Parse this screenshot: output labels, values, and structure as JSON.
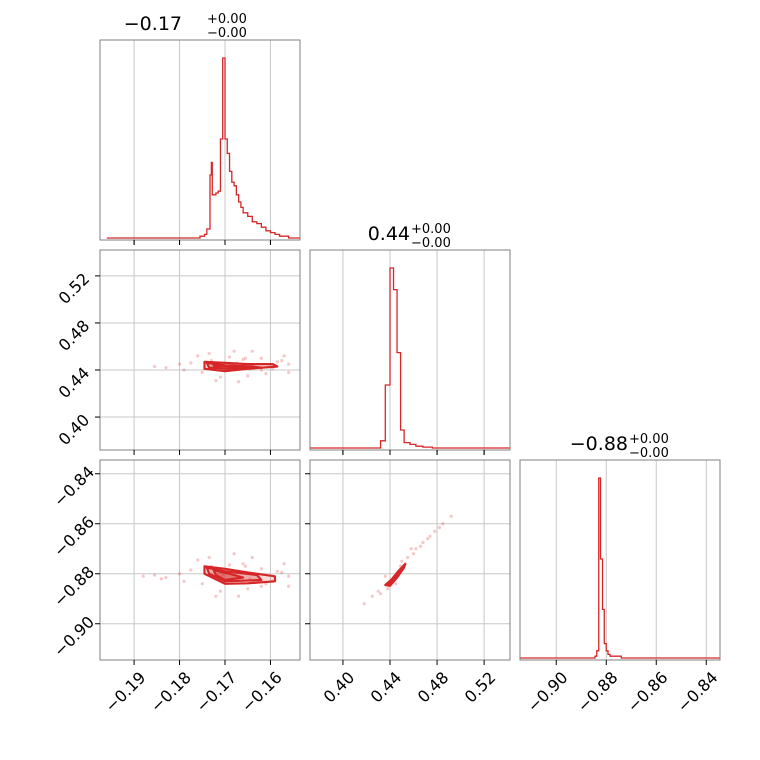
{
  "chart_data": {
    "type": "corner",
    "color": "#d62728",
    "parameters": [
      {
        "title": {
          "median": "−0.17",
          "plus": "+0.00",
          "minus": "−0.00"
        },
        "range": [
          -0.1975,
          -0.1535
        ],
        "ticks": [
          -0.19,
          -0.18,
          -0.17,
          -0.16
        ],
        "tick_labels": [
          "−0.19",
          "−0.18",
          "−0.17",
          "−0.16"
        ]
      },
      {
        "title": {
          "median": "0.44",
          "plus": "+0.00",
          "minus": "−0.00"
        },
        "range": [
          0.372,
          0.542
        ],
        "ticks": [
          0.4,
          0.44,
          0.48,
          0.52
        ],
        "tick_labels": [
          "0.40",
          "0.44",
          "0.48",
          "0.52"
        ]
      },
      {
        "title": {
          "median": "−0.88",
          "plus": "+0.00",
          "minus": "−0.00"
        },
        "range": [
          -0.9145,
          -0.8345
        ],
        "ticks": [
          -0.9,
          -0.88,
          -0.86,
          -0.84
        ],
        "tick_labels": [
          "−0.90",
          "−0.88",
          "−0.86",
          "−0.84"
        ]
      }
    ],
    "histograms": [
      {
        "param": 0,
        "bins": [
          -0.196,
          -0.1755,
          -0.1745,
          -0.174,
          -0.1733,
          -0.173,
          -0.1728,
          -0.172,
          -0.1715,
          -0.171,
          -0.1705,
          -0.17,
          -0.1695,
          -0.169,
          -0.1685,
          -0.168,
          -0.1675,
          -0.167,
          -0.1665,
          -0.166,
          -0.1655,
          -0.165,
          -0.164,
          -0.163,
          -0.162,
          -0.161,
          -0.16,
          -0.159,
          -0.158,
          -0.157,
          -0.156,
          -0.1535
        ],
        "values": [
          0.0,
          0.01,
          0.02,
          0.05,
          0.35,
          0.42,
          0.24,
          0.25,
          0.26,
          0.55,
          1.0,
          0.55,
          0.47,
          0.37,
          0.31,
          0.29,
          0.24,
          0.2,
          0.17,
          0.14,
          0.14,
          0.12,
          0.09,
          0.08,
          0.06,
          0.04,
          0.03,
          0.02,
          0.01,
          0.01,
          0.0
        ]
      },
      {
        "param": 1,
        "bins": [
          0.372,
          0.432,
          0.436,
          0.44,
          0.443,
          0.446,
          0.449,
          0.452,
          0.457,
          0.462,
          0.468,
          0.476,
          0.542
        ],
        "values": [
          0.0,
          0.04,
          0.35,
          1.0,
          0.88,
          0.53,
          0.1,
          0.03,
          0.02,
          0.01,
          0.005,
          0.0
        ]
      },
      {
        "param": 2,
        "bins": [
          -0.9145,
          -0.8845,
          -0.8838,
          -0.883,
          -0.8823,
          -0.8815,
          -0.8808,
          -0.88,
          -0.8793,
          -0.8785,
          -0.877,
          -0.874,
          -0.87,
          -0.8345
        ],
        "values": [
          0.0,
          0.01,
          0.04,
          1.0,
          0.55,
          0.27,
          0.08,
          0.04,
          0.02,
          0.01,
          0.01,
          0.0,
          0.0
        ]
      }
    ],
    "joint_panels": [
      {
        "x_param": 0,
        "y_param": 1,
        "levels": [
          [
            [
              -0.1745,
              0.447
            ],
            [
              -0.17,
              0.446
            ],
            [
              -0.165,
              0.445
            ],
            [
              -0.1595,
              0.445
            ],
            [
              -0.1585,
              0.443
            ],
            [
              -0.165,
              0.441
            ],
            [
              -0.17,
              0.439
            ],
            [
              -0.1745,
              0.441
            ]
          ],
          [
            [
              -0.174,
              0.446
            ],
            [
              -0.17,
              0.444
            ],
            [
              -0.164,
              0.443
            ],
            [
              -0.162,
              0.442
            ],
            [
              -0.169,
              0.441
            ],
            [
              -0.1735,
              0.442
            ]
          ],
          [
            [
              -0.1725,
              0.444
            ],
            [
              -0.169,
              0.443
            ],
            [
              -0.166,
              0.442
            ],
            [
              -0.17,
              0.441
            ],
            [
              -0.172,
              0.442
            ]
          ]
        ],
        "points": [
          [
            -0.1775,
            0.446
          ],
          [
            -0.176,
            0.452
          ],
          [
            -0.179,
            0.44
          ],
          [
            -0.168,
            0.456
          ],
          [
            -0.166,
            0.449
          ],
          [
            -0.162,
            0.44
          ],
          [
            -0.1585,
            0.447
          ],
          [
            -0.156,
            0.445
          ],
          [
            -0.157,
            0.452
          ],
          [
            -0.171,
            0.434
          ],
          [
            -0.165,
            0.435
          ],
          [
            -0.175,
            0.438
          ],
          [
            -0.1655,
            0.45
          ],
          [
            -0.1735,
            0.454
          ],
          [
            -0.18,
            0.445
          ],
          [
            -0.183,
            0.442
          ],
          [
            -0.1855,
            0.443
          ],
          [
            -0.161,
            0.437
          ],
          [
            -0.169,
            0.451
          ],
          [
            -0.167,
            0.43
          ],
          [
            -0.164,
            0.456
          ],
          [
            -0.156,
            0.438
          ],
          [
            -0.162,
            0.45
          ],
          [
            -0.172,
            0.431
          ],
          [
            -0.1705,
            0.443
          ],
          [
            -0.1675,
            0.446
          ],
          [
            -0.1645,
            0.441
          ],
          [
            -0.173,
            0.448
          ],
          [
            -0.1595,
            0.441
          ],
          [
            -0.1575,
            0.448
          ]
        ]
      },
      {
        "x_param": 0,
        "y_param": 2,
        "levels": [
          [
            [
              -0.1745,
              -0.877
            ],
            [
              -0.17,
              -0.878
            ],
            [
              -0.165,
              -0.8795
            ],
            [
              -0.159,
              -0.881
            ],
            [
              -0.159,
              -0.883
            ],
            [
              -0.165,
              -0.8838
            ],
            [
              -0.17,
              -0.884
            ],
            [
              -0.1745,
              -0.88
            ]
          ],
          [
            [
              -0.174,
              -0.8775
            ],
            [
              -0.17,
              -0.879
            ],
            [
              -0.163,
              -0.8805
            ],
            [
              -0.162,
              -0.8825
            ],
            [
              -0.17,
              -0.883
            ],
            [
              -0.1735,
              -0.88
            ]
          ],
          [
            [
              -0.1725,
              -0.8785
            ],
            [
              -0.169,
              -0.88
            ],
            [
              -0.166,
              -0.8815
            ],
            [
              -0.17,
              -0.8825
            ],
            [
              -0.172,
              -0.8805
            ]
          ]
        ],
        "points": [
          [
            -0.1775,
            -0.8785
          ],
          [
            -0.176,
            -0.8745
          ],
          [
            -0.179,
            -0.883
          ],
          [
            -0.168,
            -0.872
          ],
          [
            -0.166,
            -0.876
          ],
          [
            -0.162,
            -0.885
          ],
          [
            -0.1585,
            -0.879
          ],
          [
            -0.156,
            -0.881
          ],
          [
            -0.157,
            -0.876
          ],
          [
            -0.171,
            -0.887
          ],
          [
            -0.165,
            -0.886
          ],
          [
            -0.175,
            -0.884
          ],
          [
            -0.1655,
            -0.877
          ],
          [
            -0.1735,
            -0.8735
          ],
          [
            -0.18,
            -0.88
          ],
          [
            -0.183,
            -0.8815
          ],
          [
            -0.1855,
            -0.8805
          ],
          [
            -0.161,
            -0.884
          ],
          [
            -0.169,
            -0.8765
          ],
          [
            -0.167,
            -0.889
          ],
          [
            -0.164,
            -0.8735
          ],
          [
            -0.156,
            -0.885
          ],
          [
            -0.162,
            -0.878
          ],
          [
            -0.172,
            -0.889
          ],
          [
            -0.1705,
            -0.8805
          ],
          [
            -0.1675,
            -0.879
          ],
          [
            -0.1645,
            -0.882
          ],
          [
            -0.173,
            -0.877
          ],
          [
            -0.1595,
            -0.883
          ],
          [
            -0.1575,
            -0.8795
          ],
          [
            -0.184,
            -0.882
          ],
          [
            -0.188,
            -0.881
          ]
        ]
      },
      {
        "x_param": 1,
        "y_param": 2,
        "levels": [
          [
            [
              0.436,
              -0.8845
            ],
            [
              0.441,
              -0.8825
            ],
            [
              0.447,
              -0.879
            ],
            [
              0.453,
              -0.876
            ],
            [
              0.452,
              -0.8775
            ],
            [
              0.446,
              -0.8815
            ],
            [
              0.44,
              -0.8848
            ]
          ],
          [
            [
              0.438,
              -0.8838
            ],
            [
              0.442,
              -0.882
            ],
            [
              0.447,
              -0.8795
            ],
            [
              0.449,
              -0.879
            ],
            [
              0.444,
              -0.8822
            ],
            [
              0.44,
              -0.8842
            ]
          ],
          [
            [
              0.44,
              -0.8832
            ],
            [
              0.443,
              -0.8818
            ],
            [
              0.446,
              -0.8805
            ],
            [
              0.442,
              -0.8828
            ]
          ]
        ],
        "points": [
          [
            0.455,
            -0.8735
          ],
          [
            0.46,
            -0.872
          ],
          [
            0.468,
            -0.8675
          ],
          [
            0.472,
            -0.866
          ],
          [
            0.478,
            -0.863
          ],
          [
            0.485,
            -0.86
          ],
          [
            0.492,
            -0.857
          ],
          [
            0.43,
            -0.887
          ],
          [
            0.425,
            -0.889
          ],
          [
            0.418,
            -0.892
          ],
          [
            0.432,
            -0.888
          ],
          [
            0.45,
            -0.875
          ],
          [
            0.458,
            -0.87
          ],
          [
            0.462,
            -0.87
          ],
          [
            0.438,
            -0.886
          ],
          [
            0.436,
            -0.881
          ],
          [
            0.449,
            -0.877
          ],
          [
            0.445,
            -0.884
          ],
          [
            0.466,
            -0.869
          ],
          [
            0.474,
            -0.865
          ],
          [
            0.482,
            -0.8615
          ]
        ]
      }
    ]
  }
}
